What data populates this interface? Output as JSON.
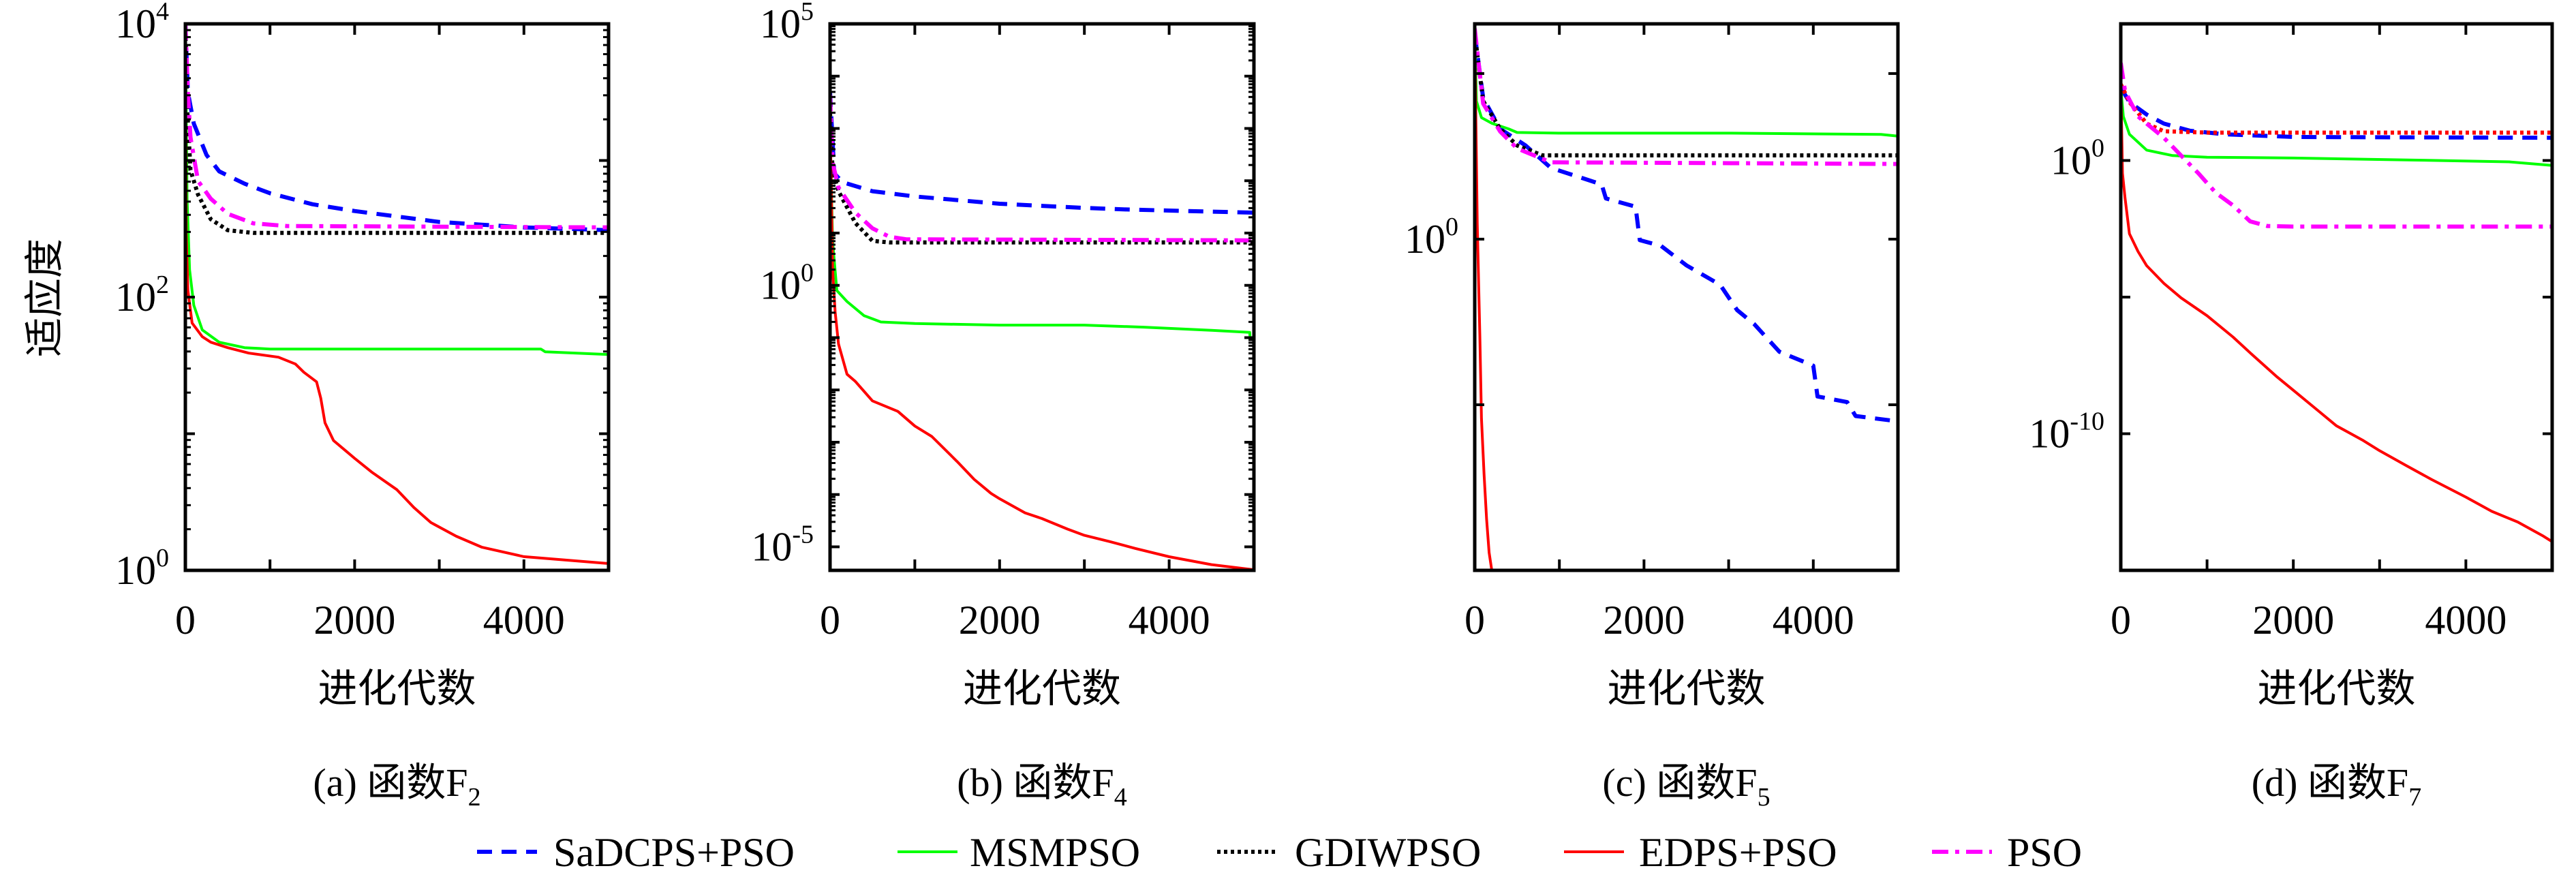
{
  "figure": {
    "ylabel": "适应度",
    "xlabel": "进化代数"
  },
  "legend": {
    "placement": "bottom-center",
    "entries": [
      {
        "label": "SaDCPS+PSO",
        "color": "#0000ff",
        "style": "dashed"
      },
      {
        "label": "MSMPSO",
        "color": "#00ff00",
        "style": "solid"
      },
      {
        "label": "GDIWPSO",
        "color": "#000000",
        "style": "dotted"
      },
      {
        "label": "EDPS+PSO",
        "color": "#ff0000",
        "style": "solid"
      },
      {
        "label": "PSO",
        "color": "#ff00ff",
        "style": "dashdot"
      }
    ]
  },
  "chart_data": [
    {
      "type": "line",
      "title": "(a) 函数F2",
      "caption_prefix": "(a) 函数F",
      "caption_sub": "2",
      "xlabel": "进化代数",
      "ylabel": "适应度",
      "yscale": "log",
      "xlim": [
        0,
        5000
      ],
      "ylim_log10": [
        0,
        4
      ],
      "x_ticks": [
        0,
        1000,
        2000,
        3000,
        4000,
        5000
      ],
      "x_tick_labels": [
        {
          "value": 0,
          "label": "0"
        },
        {
          "value": 2000,
          "label": "2000"
        },
        {
          "value": 4000,
          "label": "4000"
        }
      ],
      "y_tick_labels": [
        {
          "log10": 4,
          "base": "10",
          "exp": "4"
        },
        {
          "log10": 2,
          "base": "10",
          "exp": "2"
        },
        {
          "log10": 0,
          "base": "10",
          "exp": "0"
        }
      ],
      "y_minor_ticks": true,
      "series": [
        {
          "name": "SaDCPS+PSO",
          "x": [
            0,
            30,
            100,
            250,
            400,
            700,
            1000,
            1500,
            2000,
            2500,
            3000,
            3500,
            4000,
            5000
          ],
          "log10_y": [
            4,
            3.5,
            3.27,
            3.04,
            2.92,
            2.83,
            2.76,
            2.68,
            2.63,
            2.59,
            2.55,
            2.53,
            2.51,
            2.49
          ]
        },
        {
          "name": "MSMPSO",
          "x": [
            0,
            20,
            50,
            100,
            200,
            400,
            700,
            1000,
            4200,
            4250,
            5000
          ],
          "log10_y": [
            4,
            2.72,
            2.2,
            1.94,
            1.76,
            1.67,
            1.63,
            1.62,
            1.62,
            1.6,
            1.58
          ]
        },
        {
          "name": "GDIWPSO",
          "x": [
            0,
            20,
            60,
            150,
            300,
            500,
            800,
            5000
          ],
          "log10_y": [
            4,
            3.4,
            2.93,
            2.75,
            2.57,
            2.49,
            2.47,
            2.47
          ]
        },
        {
          "name": "EDPS+PSO",
          "x": [
            0,
            10,
            30,
            80,
            200,
            300,
            500,
            750,
            1100,
            1300,
            1400,
            1550,
            1600,
            1650,
            1750,
            2000,
            2200,
            2500,
            2700,
            2900,
            3200,
            3500,
            4000,
            5000
          ],
          "log10_y": [
            4,
            2.46,
            2.05,
            1.81,
            1.71,
            1.67,
            1.63,
            1.59,
            1.56,
            1.51,
            1.45,
            1.38,
            1.26,
            1.08,
            0.95,
            0.82,
            0.72,
            0.59,
            0.46,
            0.35,
            0.25,
            0.17,
            0.1,
            0.05
          ]
        },
        {
          "name": "PSO",
          "x": [
            0,
            30,
            60,
            150,
            300,
            500,
            800,
            1200,
            5000
          ],
          "log10_y": [
            4,
            3.5,
            3.17,
            2.85,
            2.72,
            2.61,
            2.54,
            2.52,
            2.51
          ]
        }
      ]
    },
    {
      "type": "line",
      "title": "(b) 函数F4",
      "caption_prefix": "(b) 函数F",
      "caption_sub": "4",
      "xlabel": "进化代数",
      "ylabel": "",
      "yscale": "log",
      "xlim": [
        0,
        5000
      ],
      "ylim_log10": [
        -5.45,
        5
      ],
      "x_ticks": [
        0,
        1000,
        2000,
        3000,
        4000,
        5000
      ],
      "x_tick_labels": [
        {
          "value": 0,
          "label": "0"
        },
        {
          "value": 2000,
          "label": "2000"
        },
        {
          "value": 4000,
          "label": "4000"
        }
      ],
      "y_tick_labels": [
        {
          "log10": 5,
          "base": "10",
          "exp": "5"
        },
        {
          "log10": 0,
          "base": "10",
          "exp": "0"
        },
        {
          "log10": -5,
          "base": "10",
          "exp": "-5"
        }
      ],
      "y_minor_ticks": true,
      "series": [
        {
          "name": "SaDCPS+PSO",
          "x": [
            0,
            50,
            150,
            500,
            1000,
            1500,
            2000,
            2500,
            3000,
            3500,
            4000,
            5000
          ],
          "log10_y": [
            3.7,
            2.14,
            1.97,
            1.8,
            1.7,
            1.63,
            1.56,
            1.52,
            1.48,
            1.45,
            1.43,
            1.39
          ]
        },
        {
          "name": "MSMPSO",
          "x": [
            0,
            30,
            80,
            200,
            400,
            600,
            1000,
            2000,
            3000,
            3700,
            4500,
            4950,
            4955,
            5000
          ],
          "log10_y": [
            3.03,
            0.85,
            -0.1,
            -0.31,
            -0.58,
            -0.7,
            -0.73,
            -0.76,
            -0.76,
            -0.8,
            -0.86,
            -0.9,
            -1.02,
            -1.05
          ]
        },
        {
          "name": "GDIWPSO",
          "x": [
            0,
            30,
            100,
            300,
            500,
            700,
            5000
          ],
          "log10_y": [
            3.3,
            2.2,
            1.8,
            1.19,
            0.85,
            0.82,
            0.82
          ]
        },
        {
          "name": "EDPS+PSO",
          "x": [
            0,
            30,
            60,
            100,
            200,
            300,
            500,
            800,
            1000,
            1200,
            1500,
            1700,
            1900,
            2000,
            2300,
            2500,
            2800,
            3000,
            3300,
            3600,
            4000,
            4500,
            5000
          ],
          "log10_y": [
            3.3,
            0.31,
            -0.51,
            -1.12,
            -1.7,
            -1.84,
            -2.21,
            -2.41,
            -2.69,
            -2.89,
            -3.37,
            -3.71,
            -3.98,
            -4.08,
            -4.35,
            -4.46,
            -4.66,
            -4.78,
            -4.9,
            -5.03,
            -5.19,
            -5.34,
            -5.44
          ]
        },
        {
          "name": "PSO",
          "x": [
            0,
            30,
            100,
            300,
            500,
            700,
            900,
            5000
          ],
          "log10_y": [
            3.64,
            2.35,
            1.87,
            1.39,
            1.09,
            0.93,
            0.88,
            0.86
          ]
        }
      ]
    },
    {
      "type": "line",
      "title": "(c) 函数F5",
      "caption_prefix": "(c) 函数F",
      "caption_sub": "5",
      "xlabel": "进化代数",
      "ylabel": "",
      "yscale": "log",
      "xlim": [
        0,
        5000
      ],
      "ylim_log10": [
        -10,
        6.5
      ],
      "x_ticks": [
        0,
        1000,
        2000,
        3000,
        4000,
        5000
      ],
      "x_tick_labels": [
        {
          "value": 0,
          "label": "0"
        },
        {
          "value": 2000,
          "label": "2000"
        },
        {
          "value": 4000,
          "label": "4000"
        }
      ],
      "y_tick_labels": [
        {
          "log10": 0,
          "base": "10",
          "exp": "0"
        }
      ],
      "y_major_ticks_log10": [
        5,
        0,
        -5
      ],
      "y_minor_ticks": false,
      "series": [
        {
          "name": "SaDCPS+PSO",
          "x": [
            0,
            100,
            300,
            600,
            900,
            1300,
            1500,
            1550,
            1900,
            1950,
            2200,
            2500,
            2900,
            3100,
            3300,
            3600,
            4000,
            4050,
            4400,
            4500,
            5000
          ],
          "log10_y": [
            6.2,
            4.26,
            3.33,
            2.83,
            2.15,
            1.82,
            1.65,
            1.23,
            0.98,
            -0.03,
            -0.2,
            -0.79,
            -1.38,
            -2.14,
            -2.56,
            -3.4,
            -3.82,
            -4.75,
            -4.92,
            -5.34,
            -5.5
          ]
        },
        {
          "name": "MSMPSO",
          "x": [
            0,
            20,
            80,
            200,
            400,
            500,
            1000,
            3000,
            4800,
            5000
          ],
          "log10_y": [
            6.2,
            4.17,
            3.67,
            3.5,
            3.33,
            3.22,
            3.2,
            3.2,
            3.16,
            3.11
          ]
        },
        {
          "name": "GDIWPSO",
          "x": [
            0,
            100,
            300,
            500,
            800,
            5000
          ],
          "log10_y": [
            6.2,
            4.17,
            3.33,
            2.83,
            2.53,
            2.53
          ]
        },
        {
          "name": "EDPS+PSO",
          "x": [
            0,
            30,
            60,
            80,
            110,
            140,
            170,
            200
          ],
          "log10_y": [
            6.2,
            0.47,
            -2.9,
            -5.42,
            -7.1,
            -8.45,
            -9.46,
            -9.97
          ]
        },
        {
          "name": "PSO",
          "x": [
            0,
            100,
            300,
            500,
            900,
            5000
          ],
          "log10_y": [
            6.36,
            4.09,
            3.25,
            2.74,
            2.32,
            2.27
          ]
        }
      ]
    },
    {
      "type": "line",
      "title": "(d) 函数F7",
      "caption_prefix": "(d) 函数F",
      "caption_sub": "7",
      "xlabel": "进化代数",
      "ylabel": "",
      "yscale": "log",
      "xlim": [
        0,
        5000
      ],
      "ylim_log10": [
        -15,
        5
      ],
      "x_ticks": [
        0,
        1000,
        2000,
        3000,
        4000,
        5000
      ],
      "x_tick_labels": [
        {
          "value": 0,
          "label": "0"
        },
        {
          "value": 2000,
          "label": "2000"
        },
        {
          "value": 4000,
          "label": "4000"
        }
      ],
      "y_tick_labels": [
        {
          "log10": 0,
          "base": "10",
          "exp": "0"
        },
        {
          "log10": -10,
          "base": "10",
          "exp": "-10"
        }
      ],
      "y_major_ticks_log10": [
        0,
        -5,
        -10
      ],
      "y_minor_ticks": false,
      "gdiwpso_drawn_color": "#ff0000",
      "series": [
        {
          "name": "SaDCPS+PSO",
          "x": [
            0,
            100,
            300,
            500,
            800,
            1200,
            2000,
            5000
          ],
          "log10_y": [
            2.66,
            2.14,
            1.68,
            1.35,
            1.09,
            0.96,
            0.86,
            0.83
          ]
        },
        {
          "name": "MSMPSO",
          "x": [
            0,
            30,
            100,
            300,
            600,
            1000,
            2000,
            3500,
            4500,
            5000
          ],
          "log10_y": [
            2.66,
            1.61,
            0.96,
            0.38,
            0.18,
            0.12,
            0.09,
            0.01,
            -0.05,
            -0.18
          ]
        },
        {
          "name": "GDIWPSO",
          "x": [
            0,
            100,
            300,
            500,
            1000,
            5000
          ],
          "log10_y": [
            2.79,
            2.14,
            1.35,
            1.07,
            1.02,
            1.02
          ]
        },
        {
          "name": "EDPS+PSO",
          "x": [
            0,
            20,
            50,
            100,
            200,
            300,
            500,
            700,
            1000,
            1300,
            1500,
            1800,
            2000,
            2300,
            2500,
            2800,
            3000,
            3300,
            3600,
            4000,
            4300,
            4600,
            4900,
            5000
          ],
          "log10_y": [
            2.92,
            -0.47,
            -1.38,
            -2.68,
            -3.33,
            -3.85,
            -4.5,
            -5.03,
            -5.68,
            -6.46,
            -7.04,
            -7.89,
            -8.41,
            -9.19,
            -9.71,
            -10.23,
            -10.62,
            -11.15,
            -11.67,
            -12.32,
            -12.84,
            -13.23,
            -13.75,
            -13.95
          ]
        },
        {
          "name": "PSO",
          "x": [
            0,
            50,
            200,
            500,
            700,
            900,
            1100,
            1300,
            1500,
            1700,
            2000,
            5000
          ],
          "log10_y": [
            3.57,
            2.53,
            1.61,
            0.83,
            0.18,
            -0.47,
            -1.18,
            -1.64,
            -2.23,
            -2.4,
            -2.42,
            -2.42
          ]
        }
      ]
    }
  ]
}
